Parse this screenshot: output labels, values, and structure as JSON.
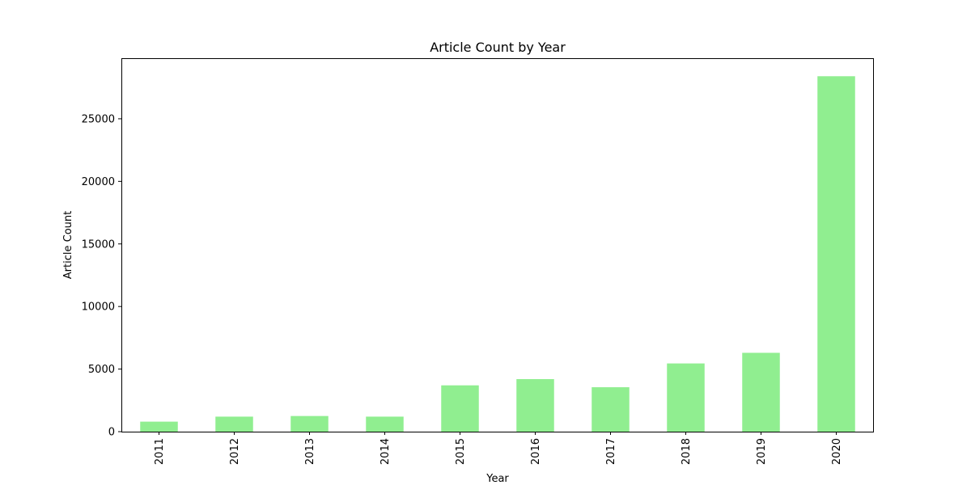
{
  "chart_data": {
    "type": "bar",
    "title": "Article Count by Year",
    "xlabel": "Year",
    "ylabel": "Article Count",
    "categories": [
      "2011",
      "2012",
      "2013",
      "2014",
      "2015",
      "2016",
      "2017",
      "2018",
      "2019",
      "2020"
    ],
    "values": [
      800,
      1200,
      1250,
      1200,
      3700,
      4200,
      3550,
      5450,
      6300,
      28400
    ],
    "ylim": [
      0,
      29840
    ],
    "yticks": [
      0,
      5000,
      10000,
      15000,
      20000,
      25000
    ],
    "ytick_labels": [
      "0",
      "5000",
      "10000",
      "15000",
      "20000",
      "25000"
    ],
    "bar_color": "#90ee90",
    "grid": false,
    "legend": "none"
  }
}
